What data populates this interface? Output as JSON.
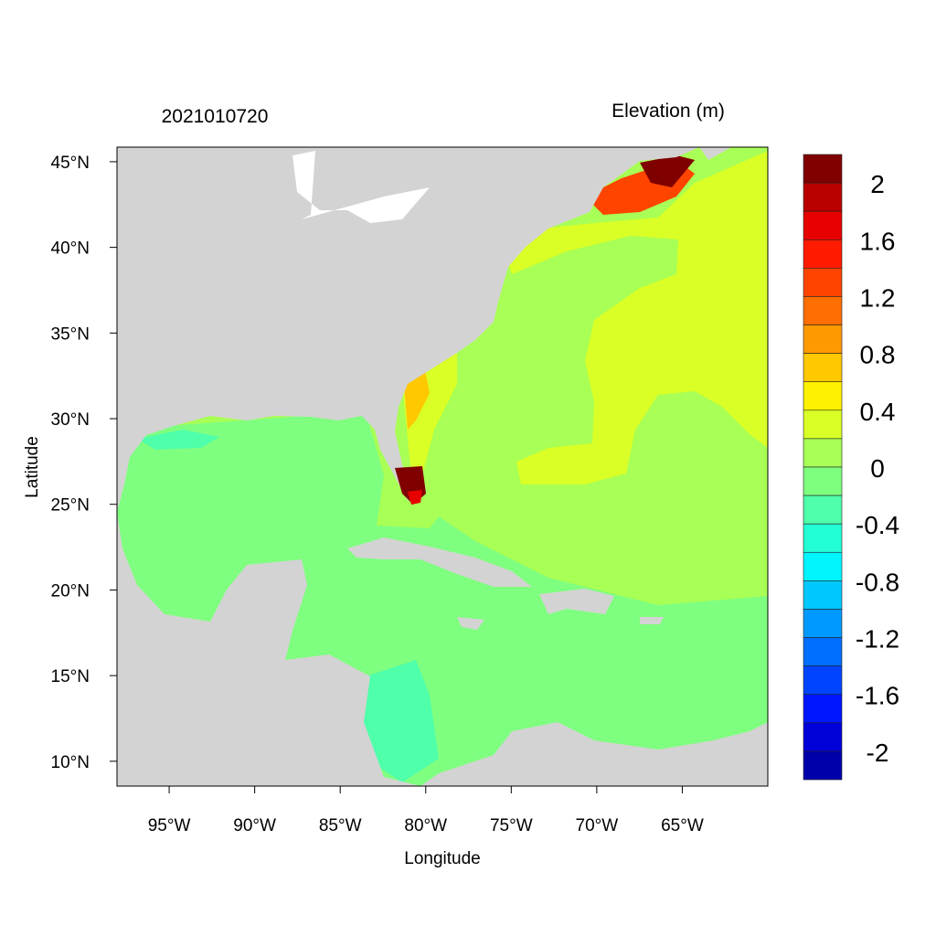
{
  "title_left": "2021010720",
  "title_right": "Elevation (m)",
  "xlabel": "Longitude",
  "ylabel": "Latitude",
  "x_ticks": [
    {
      "label": "95°W",
      "lon": -95
    },
    {
      "label": "90°W",
      "lon": -90
    },
    {
      "label": "85°W",
      "lon": -85
    },
    {
      "label": "80°W",
      "lon": -80
    },
    {
      "label": "75°W",
      "lon": -75
    },
    {
      "label": "70°W",
      "lon": -70
    },
    {
      "label": "65°W",
      "lon": -65
    }
  ],
  "y_ticks": [
    {
      "label": "45°N",
      "lat": 45
    },
    {
      "label": "40°N",
      "lat": 40
    },
    {
      "label": "35°N",
      "lat": 35
    },
    {
      "label": "30°N",
      "lat": 30
    },
    {
      "label": "25°N",
      "lat": 25
    },
    {
      "label": "20°N",
      "lat": 20
    },
    {
      "label": "15°N",
      "lat": 15
    },
    {
      "label": "10°N",
      "lat": 10
    }
  ],
  "extent": {
    "lon": [
      -98.05,
      -60
    ],
    "lat": [
      8.55,
      45.85
    ]
  },
  "colorbar": {
    "levels_min": -2.2,
    "levels_max": 2.2,
    "step": 0.2,
    "colors_top_to_bottom": [
      "#800000",
      "#b80000",
      "#e60000",
      "#ff1a00",
      "#ff4400",
      "#ff6e00",
      "#ff9900",
      "#ffc800",
      "#fff200",
      "#d9ff26",
      "#a8ff55",
      "#7fff7f",
      "#4fffaa",
      "#22ffd5",
      "#00f5ff",
      "#00c8ff",
      "#0099ff",
      "#006eff",
      "#0044ff",
      "#0016ff",
      "#0000d9",
      "#0000aa"
    ],
    "labels": [
      {
        "label": "2",
        "value": 2
      },
      {
        "label": "1.6",
        "value": 1.6
      },
      {
        "label": "1.2",
        "value": 1.2
      },
      {
        "label": "0.8",
        "value": 0.8
      },
      {
        "label": "0.4",
        "value": 0.4
      },
      {
        "label": "0",
        "value": 0
      },
      {
        "label": "-0.4",
        "value": -0.4
      },
      {
        "label": "-0.8",
        "value": -0.8
      },
      {
        "label": "-1.2",
        "value": -1.2
      },
      {
        "label": "-1.6",
        "value": -1.6
      },
      {
        "label": "-2",
        "value": -2
      }
    ]
  },
  "colors": {
    "land": "#d3d3d3",
    "atlantic": "#a8ff55",
    "gulf_caribbean": "#7fff7f",
    "mid_atlantic": "#d9ff26"
  }
}
